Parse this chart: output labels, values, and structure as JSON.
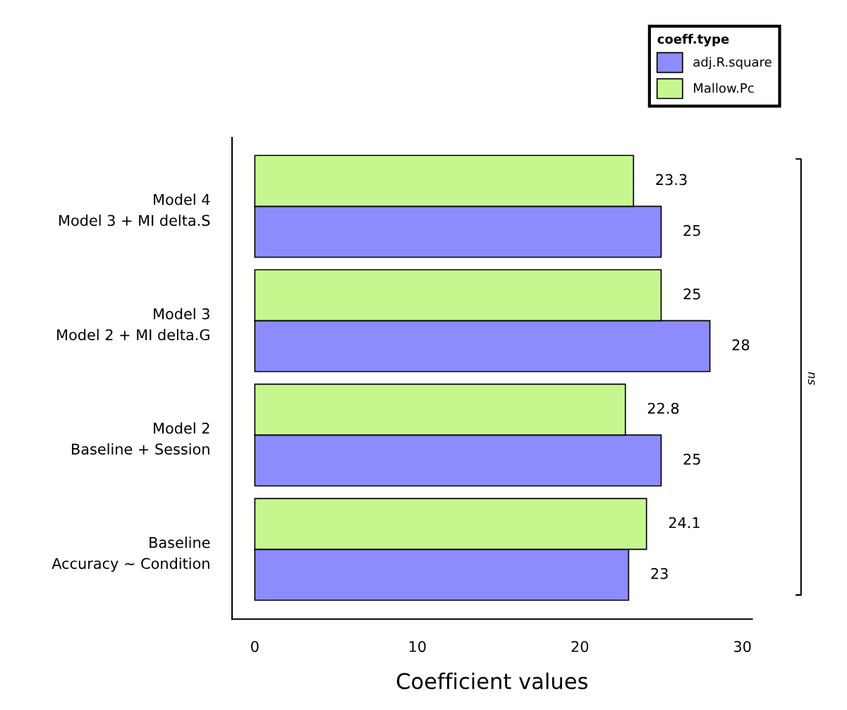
{
  "chart_data": {
    "type": "bar",
    "orientation": "horizontal",
    "xlabel": "Coefficient values",
    "legend_title": "coeff.type",
    "categories": [
      "Model 4\nModel 3 + MI delta.S",
      "Model 3\nModel 2 + MI delta.G",
      "Model 2\nBaseline + Session",
      "Baseline\nAccuracy ~ Condition"
    ],
    "series": [
      {
        "name": "adj.R.square",
        "color": "#8c8cff",
        "values": [
          25,
          28,
          25,
          23
        ]
      },
      {
        "name": "Mallow.Pc",
        "color": "#c6f78f",
        "values": [
          23.3,
          25,
          22.8,
          24.1
        ]
      }
    ],
    "data_labels": true,
    "xlim": [
      -1.4,
      30.6
    ],
    "xticks": [
      0,
      10,
      20,
      30
    ],
    "grid": false,
    "legend": "top right",
    "annotations": [
      "ns"
    ]
  }
}
